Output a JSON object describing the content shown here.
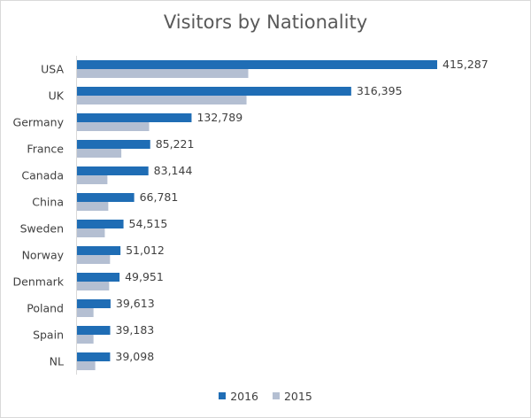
{
  "chart_data": {
    "type": "bar",
    "orientation": "horizontal",
    "title": "Visitors by Nationality",
    "categories": [
      "USA",
      "UK",
      "Germany",
      "France",
      "Canada",
      "China",
      "Sweden",
      "Norway",
      "Denmark",
      "Poland",
      "Spain",
      "NL"
    ],
    "series": [
      {
        "name": "2016",
        "color": "#1f6db5",
        "values": [
          415287,
          316395,
          132789,
          85221,
          83144,
          66781,
          54515,
          51012,
          49951,
          39613,
          39183,
          39098
        ],
        "labels": [
          "415,287",
          "316,395",
          "132,789",
          "85,221",
          "83,144",
          "66,781",
          "54,515",
          "51,012",
          "49,951",
          "39,613",
          "39,183",
          "39,098"
        ]
      },
      {
        "name": "2015",
        "color": "#b4bfd2",
        "values": [
          198000,
          196000,
          84000,
          52000,
          36000,
          37000,
          33000,
          39000,
          38000,
          20000,
          20000,
          22000
        ]
      }
    ],
    "xlim": [
      0,
      415287
    ],
    "grid": false,
    "legend": "bottom"
  }
}
